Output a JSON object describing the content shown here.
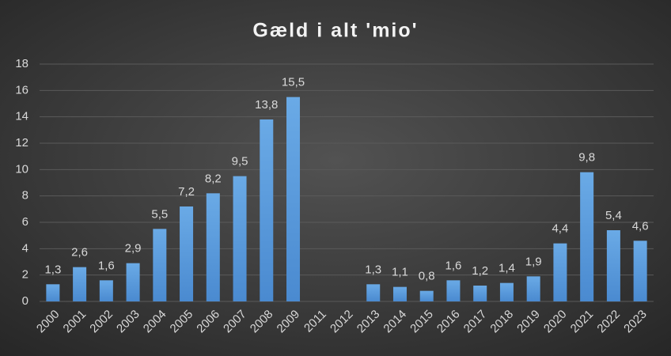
{
  "chart_data": {
    "type": "bar",
    "title": "Gæld i alt 'mio'",
    "categories": [
      "2000",
      "2001",
      "2002",
      "2003",
      "2004",
      "2005",
      "2006",
      "2007",
      "2008",
      "2009",
      "2011",
      "2012",
      "2013",
      "2014",
      "2015",
      "2016",
      "2017",
      "2018",
      "2019",
      "2020",
      "2021",
      "2022",
      "2023"
    ],
    "values": [
      1.3,
      2.6,
      1.6,
      2.9,
      5.5,
      7.2,
      8.2,
      9.5,
      13.8,
      15.5,
      null,
      null,
      1.3,
      1.1,
      0.8,
      1.6,
      1.2,
      1.4,
      1.9,
      4.4,
      9.8,
      5.4,
      4.6
    ],
    "value_labels": [
      "1,3",
      "2,6",
      "1,6",
      "2,9",
      "5,5",
      "7,2",
      "8,2",
      "9,5",
      "13,8",
      "15,5",
      null,
      null,
      "1,3",
      "1,1",
      "0,8",
      "1,6",
      "1,2",
      "1,4",
      "1,9",
      "4,4",
      "9,8",
      "5,4",
      "4,6"
    ],
    "color": "#5b9bd5",
    "ylim": [
      0,
      18
    ],
    "yticks": [
      0,
      2,
      4,
      6,
      8,
      10,
      12,
      14,
      16,
      18
    ],
    "grid": true
  }
}
